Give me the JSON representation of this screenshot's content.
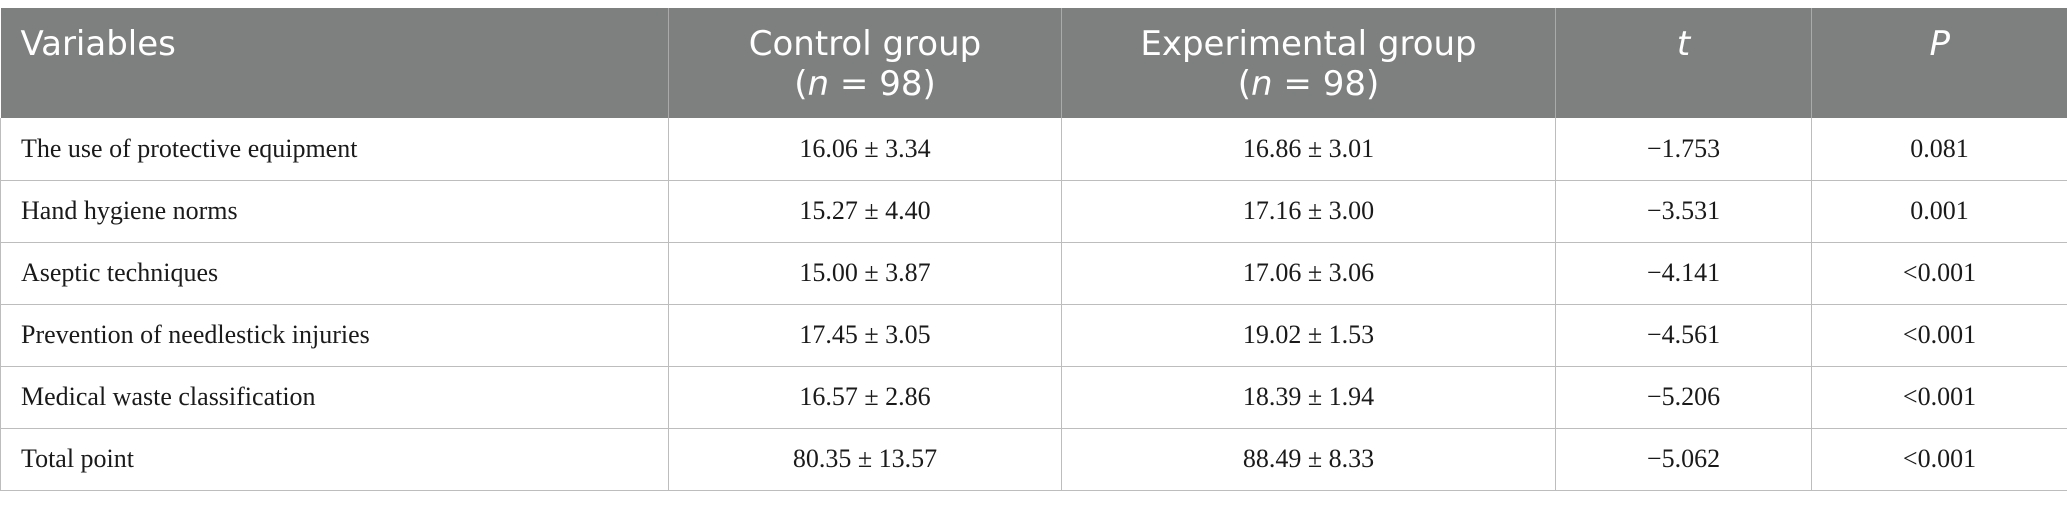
{
  "table": {
    "headers": {
      "variables": "Variables",
      "control": {
        "label": "Control group",
        "n_italic": "n",
        "n_rest": " = 98"
      },
      "experimental": {
        "label": "Experimental group",
        "n_italic": "n",
        "n_rest": " = 98"
      },
      "t": "t",
      "p": "P"
    },
    "rows": [
      {
        "variable": "The use of protective equipment",
        "control": "16.06 ± 3.34",
        "experimental": "16.86 ± 3.01",
        "t": "−1.753",
        "p": "0.081"
      },
      {
        "variable": "Hand hygiene norms",
        "control": "15.27 ± 4.40",
        "experimental": "17.16 ± 3.00",
        "t": "−3.531",
        "p": "0.001"
      },
      {
        "variable": "Aseptic techniques",
        "control": "15.00 ± 3.87",
        "experimental": "17.06 ± 3.06",
        "t": "−4.141",
        "p": "<0.001"
      },
      {
        "variable": "Prevention of needlestick injuries",
        "control": "17.45 ± 3.05",
        "experimental": "19.02 ± 1.53",
        "t": "−4.561",
        "p": "<0.001"
      },
      {
        "variable": "Medical waste classification",
        "control": "16.57 ± 2.86",
        "experimental": "18.39 ± 1.94",
        "t": "−5.206",
        "p": "<0.001"
      },
      {
        "variable": "Total point",
        "control": "80.35 ± 13.57",
        "experimental": "88.49 ± 8.33",
        "t": "−5.062",
        "p": "<0.001"
      }
    ]
  },
  "colors": {
    "header_bg": "#7e807f",
    "header_text": "#ffffff",
    "grid": "#bdbdbd"
  }
}
